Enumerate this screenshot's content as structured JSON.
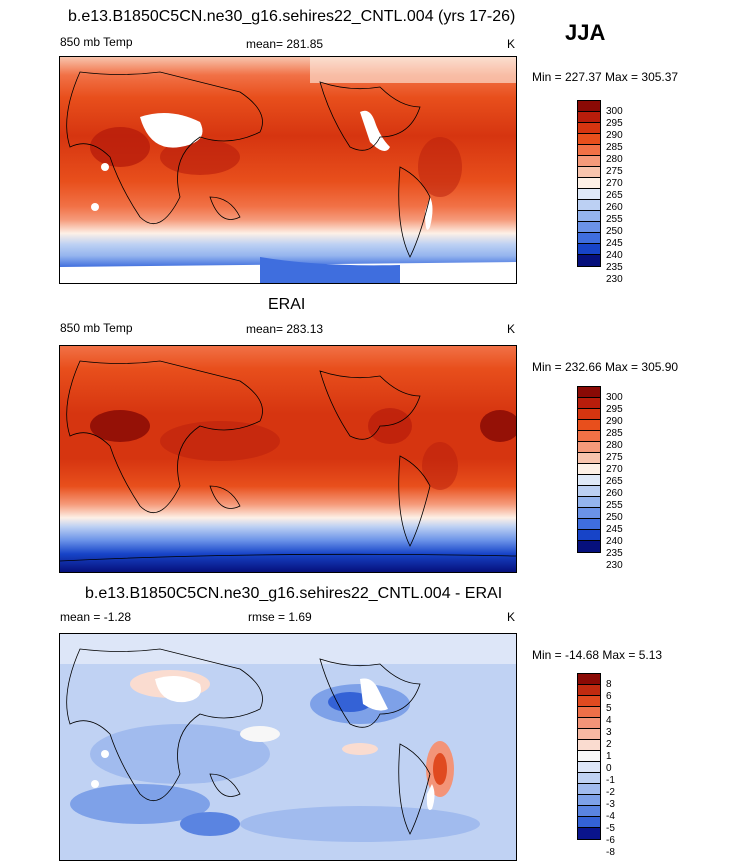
{
  "season": "JJA",
  "panels": [
    {
      "title": "b.e13.B1850C5CN.ne30_g16.sehires22_CNTL.004 (yrs 17-26)",
      "left_label": "850 mb Temp",
      "center_label": "mean= 281.85",
      "units": "K",
      "minmax": "Min = 227.37 Max = 305.37",
      "levels": [
        "300",
        "295",
        "290",
        "285",
        "280",
        "275",
        "270",
        "265",
        "260",
        "255",
        "250",
        "245",
        "240",
        "235",
        "230"
      ]
    },
    {
      "title": "ERAI",
      "left_label": "850 mb Temp",
      "center_label": "mean= 283.13",
      "units": "K",
      "minmax": "Min = 232.66 Max = 305.90",
      "levels": [
        "300",
        "295",
        "290",
        "285",
        "280",
        "275",
        "270",
        "265",
        "260",
        "255",
        "250",
        "245",
        "240",
        "235",
        "230"
      ]
    },
    {
      "title": "b.e13.B1850C5CN.ne30_g16.sehires22_CNTL.004 - ERAI",
      "left_label": "mean =  -1.28",
      "center_label": "rmse =   1.69",
      "units": "K",
      "minmax": "Min = -14.68 Max =   5.13",
      "levels": [
        "8",
        "6",
        "5",
        "4",
        "3",
        "2",
        "1",
        "0",
        "-1",
        "-2",
        "-3",
        "-4",
        "-5",
        "-6",
        "-8"
      ]
    }
  ],
  "colors": {
    "temp_scale": [
      "#8a0a05",
      "#b81d0b",
      "#d63510",
      "#e84f1c",
      "#f17146",
      "#f59a7a",
      "#f8c4ad",
      "#fdf0e6",
      "#dfe9f8",
      "#bcd0f3",
      "#94b4ee",
      "#6b93e8",
      "#3f6ede",
      "#1744c8",
      "#06107c"
    ],
    "diff_scale": [
      "#8a0a05",
      "#c02a10",
      "#e04a20",
      "#ee6f48",
      "#f39478",
      "#f7b8a2",
      "#fadcd0",
      "#f7f7f7",
      "#dde6f8",
      "#c0d2f3",
      "#a1bbee",
      "#7ea1e8",
      "#5a84e1",
      "#3462d6",
      "#0a148c"
    ]
  }
}
